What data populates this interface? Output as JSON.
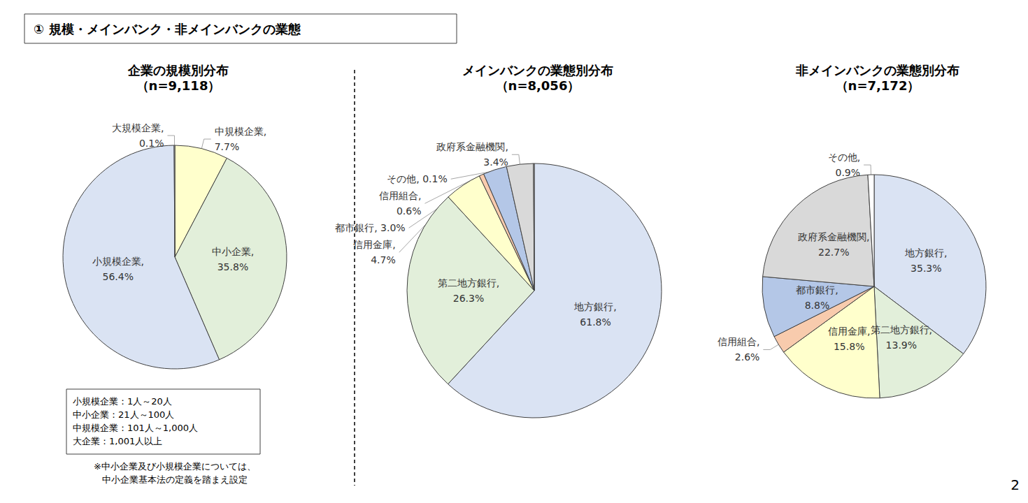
{
  "header": {
    "title": "① 規模・メインバンク・非メインバンクの業態"
  },
  "chart_data": [
    {
      "type": "pie",
      "title": "企業の規模別分布",
      "subtitle": "（n=9,118）",
      "categories": [
        "中規模企業",
        "中小企業",
        "小規模企業",
        "大規模企業"
      ],
      "values": [
        7.7,
        35.8,
        56.4,
        0.1
      ],
      "value_labels": [
        "中規模企業,\n7.7%",
        "中小企業,\n35.8%",
        "小規模企業,\n56.4%",
        "大規模企業,\n0.1%"
      ],
      "colors": [
        "#ffffcc",
        "#e2efda",
        "#dae3f3",
        "#ffffff"
      ],
      "data_labels": true
    },
    {
      "type": "pie",
      "title": "メインバンクの業態別分布",
      "subtitle": "（n=8,056）",
      "categories": [
        "地方銀行",
        "第二地方銀行",
        "信用金庫",
        "信用組合",
        "都市銀行",
        "政府系金融機関",
        "その他"
      ],
      "values": [
        61.8,
        26.3,
        4.7,
        0.6,
        3.0,
        3.4,
        0.1
      ],
      "value_labels": [
        "地方銀行,\n61.8%",
        "第二地方銀行,\n26.3%",
        "信用金庫,\n4.7%",
        "信用組合,\n0.6%",
        "都市銀行, 3.0%",
        "政府系金融機関,\n3.4%",
        "その他, 0.1%"
      ],
      "colors": [
        "#dae3f3",
        "#e2efda",
        "#ffffcc",
        "#f8cbad",
        "#b4c7e7",
        "#d9d9d9",
        "#ffffff"
      ],
      "data_labels": true
    },
    {
      "type": "pie",
      "title": "非メインバンクの業態別分布",
      "subtitle": "（n=7,172）",
      "categories": [
        "地方銀行",
        "第二地方銀行",
        "信用金庫",
        "信用組合",
        "都市銀行",
        "政府系金融機関",
        "その他"
      ],
      "values": [
        35.3,
        13.9,
        15.8,
        2.6,
        8.8,
        22.7,
        0.9
      ],
      "value_labels": [
        "地方銀行,\n35.3%",
        "第二地方銀行,\n13.9%",
        "信用金庫,\n15.8%",
        "信用組合,\n2.6%",
        "都市銀行,\n8.8%",
        "政府系金融機関,\n22.7%",
        "その他,\n0.9%"
      ],
      "colors": [
        "#dae3f3",
        "#e2efda",
        "#ffffcc",
        "#f8cbad",
        "#b4c7e7",
        "#d9d9d9",
        "#ffffff"
      ],
      "data_labels": true
    }
  ],
  "definitions": [
    "小規模企業：1人～20人",
    "中小企業：21人～100人",
    "中規模企業：101人～1,000人",
    "大企業：1,001人以上"
  ],
  "footnote": "※中小企業及び小規模企業については、\n中小企業基本法の定義を踏まえ設定",
  "page_number": "2"
}
